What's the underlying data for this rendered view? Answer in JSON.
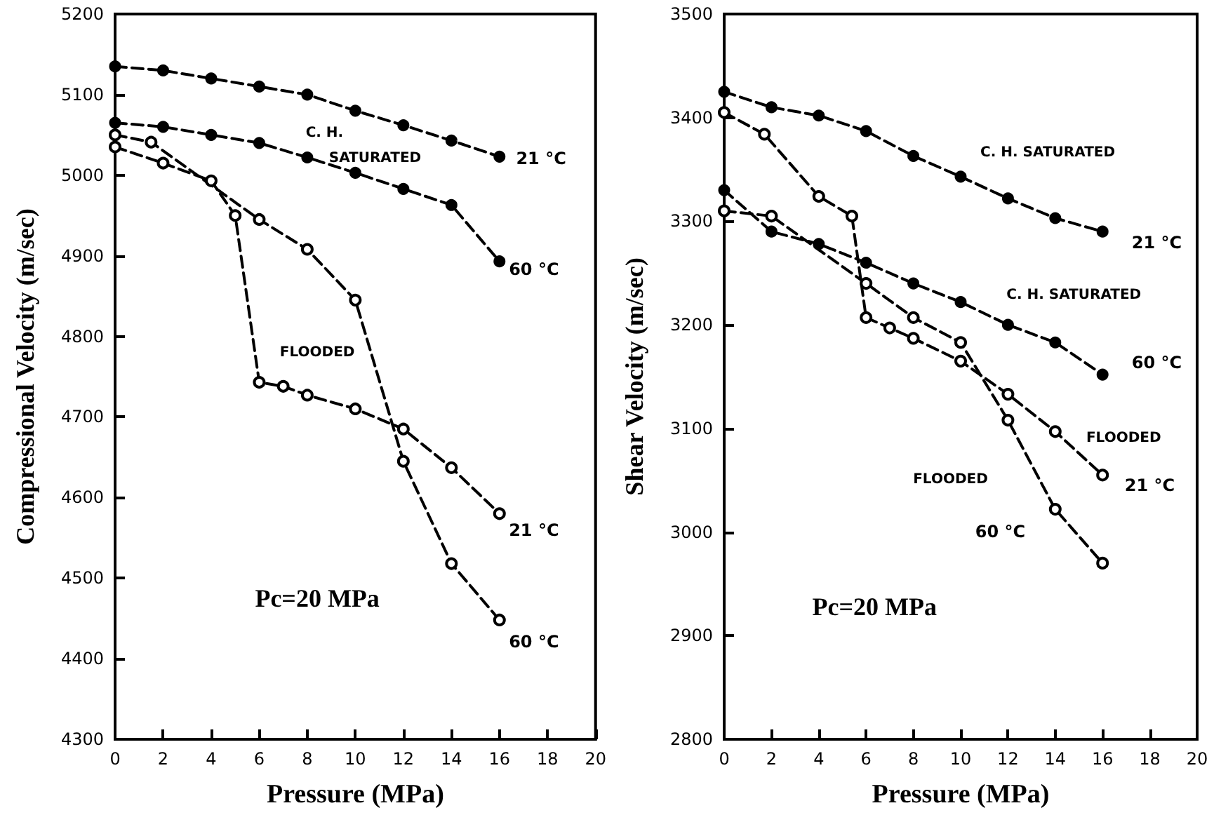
{
  "chart_data": [
    {
      "type": "line",
      "xlabel": "Pressure (MPa)",
      "ylabel": "Compressional Velocity (m/sec)",
      "xlim": [
        0,
        20
      ],
      "xticks": [
        0,
        2,
        4,
        6,
        8,
        10,
        12,
        14,
        16,
        18,
        20
      ],
      "ylim": [
        4300,
        5200
      ],
      "yticks": [
        4300,
        4400,
        4500,
        4600,
        4700,
        4800,
        4900,
        5000,
        5100,
        5200
      ],
      "grid": false,
      "line_style": "dashed",
      "series": [
        {
          "name": "21 °C",
          "color": "#000000",
          "marker": "circle",
          "x": [
            0,
            2,
            4,
            6,
            8,
            10,
            12,
            14,
            16
          ],
          "values": [
            5135,
            5130,
            5120,
            5110,
            5100,
            5080,
            5062,
            5043,
            5023
          ]
        },
        {
          "name": "60 °C",
          "color": "#000000",
          "marker": "circle",
          "x": [
            0,
            2,
            4,
            6,
            8,
            10,
            12,
            14,
            16
          ],
          "values": [
            5065,
            5060,
            5050,
            5040,
            5022,
            5003,
            4983,
            4963,
            4893
          ]
        },
        {
          "name": "21 °C",
          "color": "#000000",
          "marker": "open circle",
          "x": [
            0,
            2,
            4,
            5,
            6,
            7,
            8,
            10,
            12,
            14,
            16
          ],
          "values": [
            5035,
            5015,
            4993,
            4950,
            4743,
            4738,
            4727,
            4710,
            4685,
            4637,
            4580
          ]
        },
        {
          "name": "60 °C",
          "color": "#000000",
          "marker": "open circle",
          "x": [
            0,
            1.5,
            6,
            8,
            10,
            12,
            14,
            16
          ],
          "values": [
            5050,
            5041,
            4945,
            4908,
            4845,
            4645,
            4518,
            4448
          ]
        }
      ],
      "annotations": [
        "C. H.",
        "SATURATED",
        "FLOODED",
        "Pc=20 MPa"
      ]
    },
    {
      "type": "line",
      "xlabel": "Pressure (MPa)",
      "ylabel": "Shear Velocity (m/sec)",
      "xlim": [
        0,
        20
      ],
      "xticks": [
        0,
        2,
        4,
        6,
        8,
        10,
        12,
        14,
        16,
        18,
        20
      ],
      "ylim": [
        2800,
        3500
      ],
      "yticks": [
        2800,
        2900,
        3000,
        3100,
        3200,
        3300,
        3400,
        3500
      ],
      "grid": false,
      "line_style": "dashed",
      "series": [
        {
          "name": "21 °C",
          "color": "#000000",
          "marker": "circle",
          "x": [
            0,
            2,
            4,
            6,
            8,
            10,
            12,
            14,
            16
          ],
          "values": [
            3425,
            3410,
            3402,
            3387,
            3363,
            3343,
            3322,
            3303,
            3290
          ]
        },
        {
          "name": "60 °C",
          "color": "#000000",
          "marker": "circle",
          "x": [
            0,
            2,
            4,
            6,
            8,
            10,
            12,
            14,
            16
          ],
          "values": [
            3330,
            3290,
            3278,
            3260,
            3240,
            3222,
            3200,
            3183,
            3152
          ]
        },
        {
          "name": "21 °C",
          "color": "#000000",
          "marker": "open circle",
          "x": [
            0,
            1.7,
            4,
            5.4,
            6,
            7,
            8,
            10,
            12,
            14,
            16
          ],
          "values": [
            3405,
            3384,
            3324,
            3305,
            3207,
            3197,
            3187,
            3165,
            3133,
            3097,
            3055
          ]
        },
        {
          "name": "60 °C",
          "color": "#000000",
          "marker": "open circle",
          "x": [
            0,
            2,
            6,
            8,
            10,
            12,
            14,
            16
          ],
          "values": [
            3310,
            3305,
            3240,
            3207,
            3183,
            3108,
            3022,
            2970
          ]
        }
      ],
      "annotations": [
        "C. H. SATURATED",
        "C. H. SATURATED",
        "FLOODED",
        "FLOODED",
        "Pc=20 MPa"
      ]
    }
  ]
}
